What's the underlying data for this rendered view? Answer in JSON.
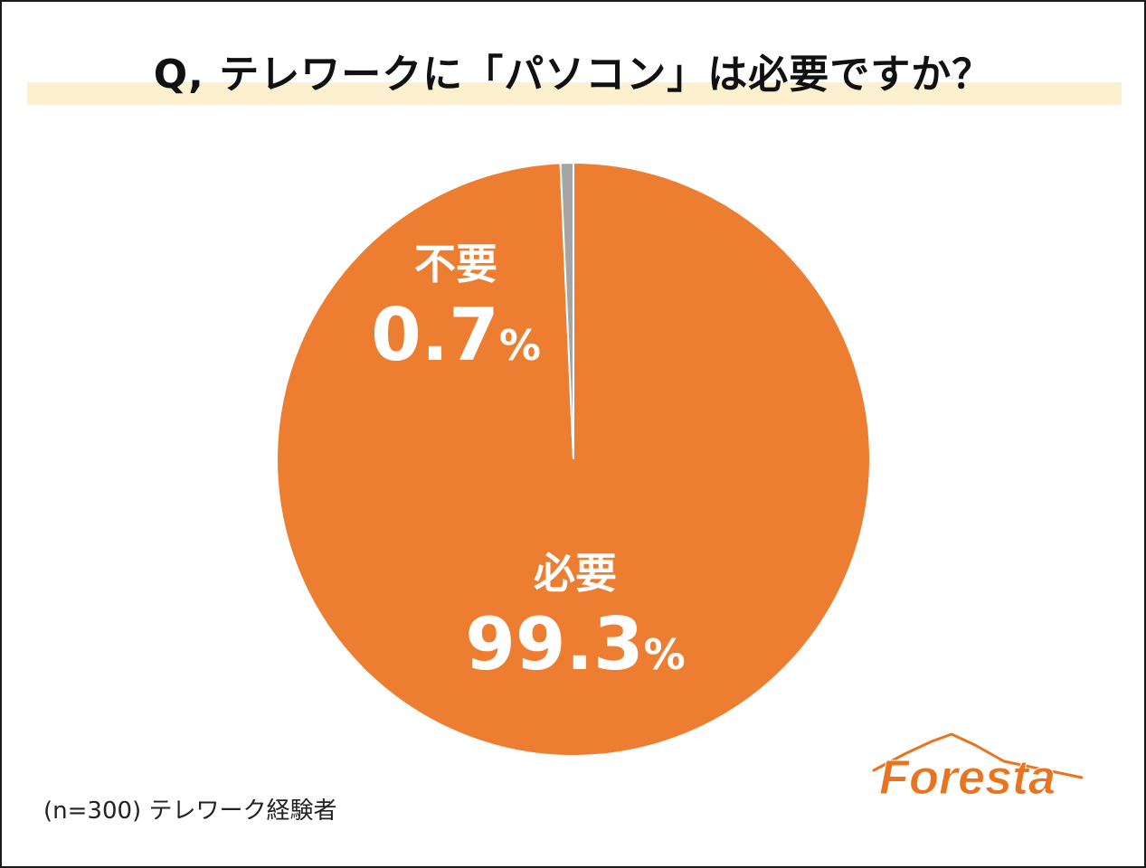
{
  "title": "Q, テレワークに「パソコン」は必要ですか？",
  "note": "(n=300) テレワーク経験者",
  "logo_text": "Foresta",
  "colors": {
    "primary_slice": "#ED7D31",
    "secondary_slice": "#A5A5A5",
    "title_band": "#FDF0CF",
    "logo": "#E9731F"
  },
  "chart_data": {
    "type": "pie",
    "categories": [
      "必要",
      "不要"
    ],
    "values": [
      99.3,
      0.7
    ],
    "value_labels": [
      "99.3",
      "0.7"
    ],
    "unit": "%",
    "colors": [
      "#ED7D31",
      "#A5A5A5"
    ]
  }
}
